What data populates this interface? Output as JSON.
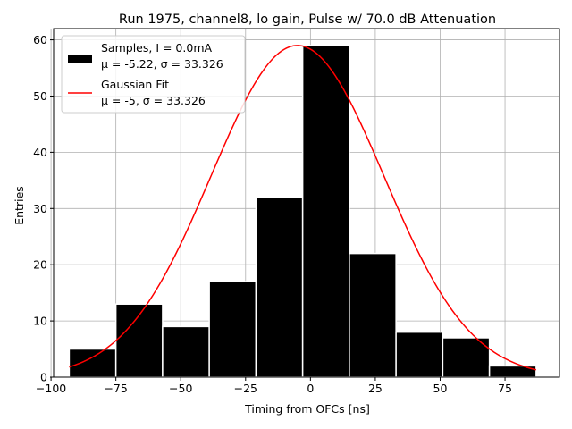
{
  "chart_data": {
    "type": "bar",
    "title": "Run 1975, channel8, lo gain, Pulse w/ 70.0 dB Attenuation",
    "xlabel": "Timing from OFCs [ns]",
    "ylabel": "Entries",
    "xlim": [
      -99,
      96
    ],
    "ylim": [
      0,
      62
    ],
    "xticks": [
      -100,
      -75,
      -50,
      -25,
      0,
      25,
      50,
      75
    ],
    "xtick_labels": [
      "−100",
      "−75",
      "−50",
      "−25",
      "0",
      "25",
      "50",
      "75"
    ],
    "yticks": [
      0,
      10,
      20,
      30,
      40,
      50,
      60
    ],
    "ytick_labels": [
      "0",
      "10",
      "20",
      "30",
      "40",
      "50",
      "60"
    ],
    "grid": true,
    "legend_position": "top-left",
    "bins": {
      "edges": [
        -93,
        -75,
        -57,
        -39,
        -21,
        -3,
        15,
        33,
        51,
        69,
        87
      ],
      "counts": [
        5,
        13,
        9,
        17,
        32,
        59,
        22,
        8,
        7,
        2
      ]
    },
    "fit": {
      "type": "gaussian",
      "amplitude": 59,
      "mu": -5,
      "sigma": 33.326,
      "x_range": [
        -93,
        87
      ]
    },
    "legend": [
      {
        "type": "patch",
        "color": "#000000",
        "line1": "Samples, I = 0.0mA",
        "line2": "μ = -5.22, σ = 33.326"
      },
      {
        "type": "line",
        "color": "#ff0000",
        "line1": "Gaussian Fit",
        "line2": "μ = -5, σ = 33.326"
      }
    ],
    "colors": {
      "bars": "#000000",
      "bar_edge": "#ffffff",
      "fit": "#ff0000",
      "grid": "#b0b0b0"
    }
  }
}
